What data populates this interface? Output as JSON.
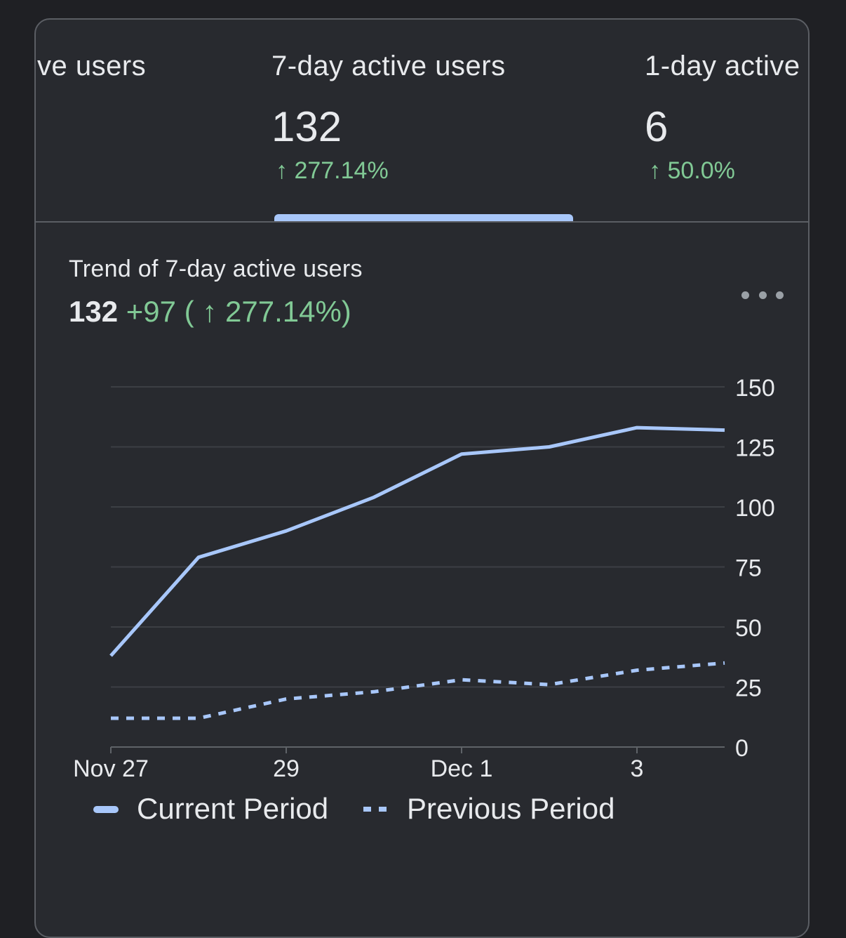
{
  "tabs": [
    {
      "label": "ve users",
      "value": "",
      "change": ""
    },
    {
      "label": "7-day active users",
      "value": "132",
      "change": "↑ 277.14%"
    },
    {
      "label": "1-day active",
      "value": "6",
      "change": "↑ 50.0%"
    }
  ],
  "selected_tab": 1,
  "chart": {
    "title": "Trend of 7-day active users",
    "summary_value": "132",
    "summary_change": "+97 ( ↑ 277.14%)",
    "more_icon": "more-horizontal-icon"
  },
  "colors": {
    "accent": "#a8c7fa",
    "positive": "#81c995",
    "text": "#e8eaed",
    "grid": "#3c3f44",
    "background": "#282a2f"
  },
  "chart_data": {
    "type": "line",
    "title": "Trend of 7-day active users",
    "x": [
      "Nov 27",
      "Nov 28",
      "Nov 29",
      "Nov 30",
      "Dec 1",
      "Dec 2",
      "Dec 3",
      "Dec 4"
    ],
    "x_tick_labels": [
      {
        "index": 0,
        "label": "Nov 27"
      },
      {
        "index": 2,
        "label": "29"
      },
      {
        "index": 4,
        "label": "Dec 1"
      },
      {
        "index": 6,
        "label": "3"
      }
    ],
    "y_ticks": [
      0,
      25,
      50,
      75,
      100,
      125,
      150
    ],
    "ylim": [
      0,
      150
    ],
    "xlabel": "",
    "ylabel": "",
    "grid": true,
    "legend_position": "bottom",
    "series": [
      {
        "name": "Current Period",
        "style": "solid",
        "values": [
          38,
          79,
          90,
          104,
          122,
          125,
          133,
          132
        ]
      },
      {
        "name": "Previous Period",
        "style": "dotted",
        "values": [
          12,
          12,
          20,
          23,
          28,
          26,
          32,
          35
        ]
      }
    ]
  }
}
